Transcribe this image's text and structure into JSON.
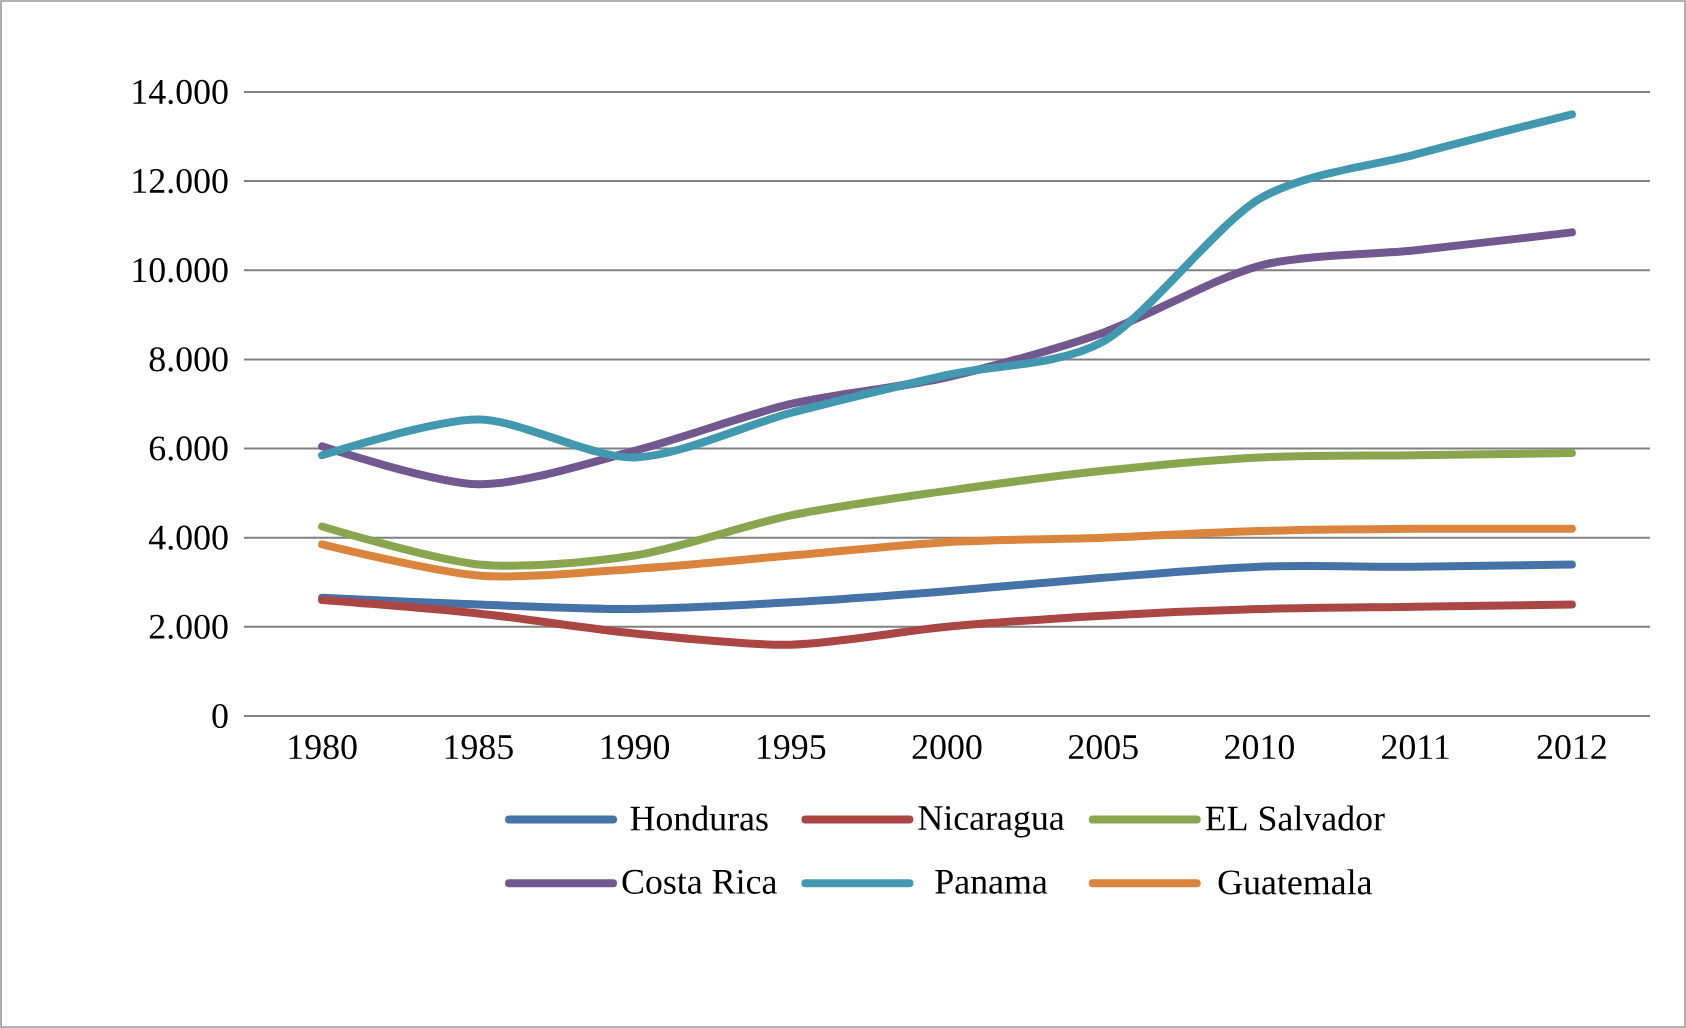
{
  "chart_data": {
    "type": "line",
    "categories": [
      "1980",
      "1985",
      "1990",
      "1995",
      "2000",
      "2005",
      "2010",
      "2011",
      "2012"
    ],
    "ylim": [
      0,
      14000
    ],
    "yticks": [
      {
        "value": 0,
        "label": "0"
      },
      {
        "value": 2000,
        "label": "2.000"
      },
      {
        "value": 4000,
        "label": "4.000"
      },
      {
        "value": 6000,
        "label": "6.000"
      },
      {
        "value": 8000,
        "label": "8.000"
      },
      {
        "value": 10000,
        "label": "10.000"
      },
      {
        "value": 12000,
        "label": "12.000"
      },
      {
        "value": 14000,
        "label": "14.000"
      }
    ],
    "grid": "y",
    "legend": "bottom",
    "marker": "none",
    "line_style": "solid",
    "series": [
      {
        "name": "Honduras",
        "color": "#4572a7",
        "values": [
          2650,
          2500,
          2400,
          2550,
          2800,
          3100,
          3350,
          3350,
          3400
        ]
      },
      {
        "name": "Nicaragua",
        "color": "#aa4643",
        "values": [
          2600,
          2300,
          1850,
          1600,
          2000,
          2250,
          2400,
          2450,
          2500
        ]
      },
      {
        "name": "EL Salvador",
        "color": "#89a54e",
        "values": [
          4250,
          3400,
          3600,
          4500,
          5050,
          5500,
          5800,
          5850,
          5900
        ]
      },
      {
        "name": "Costa Rica",
        "color": "#71588f",
        "values": [
          6050,
          5200,
          5950,
          7000,
          7600,
          8600,
          10100,
          10450,
          10850
        ]
      },
      {
        "name": "Panama",
        "color": "#4198af",
        "values": [
          5850,
          6650,
          5800,
          6800,
          7650,
          8400,
          11600,
          12600,
          13500
        ]
      },
      {
        "name": "Guatemala",
        "color": "#db843d",
        "values": [
          3850,
          3150,
          3300,
          3600,
          3900,
          4000,
          4150,
          4200,
          4200
        ]
      }
    ]
  }
}
